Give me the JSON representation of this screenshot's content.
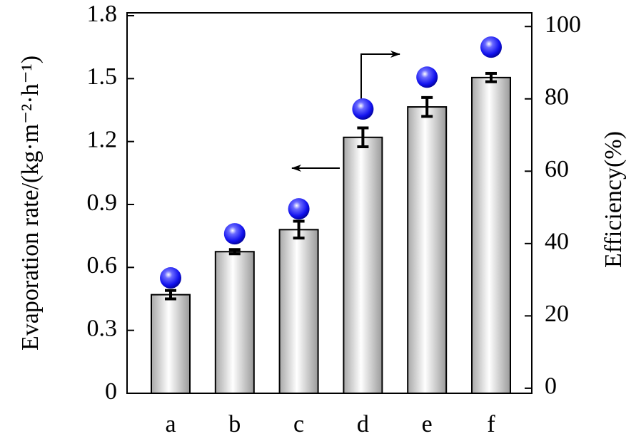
{
  "chart_data": {
    "type": "bar",
    "categories": [
      "a",
      "b",
      "c",
      "d",
      "e",
      "f"
    ],
    "ylabel": "Evaporation rate/(kg·m⁻²·h⁻¹)",
    "y2label": "Efficiency(%)",
    "series": [
      {
        "type": "bar",
        "color": "#d9d9d9",
        "values": [
          0.47,
          0.675,
          0.78,
          1.22,
          1.365,
          1.505
        ],
        "errors": [
          0.02,
          0.01,
          0.04,
          0.045,
          0.045,
          0.02
        ]
      },
      {
        "type": "scatter",
        "axis": "y2",
        "color": "#1a1aff",
        "values": [
          30.5,
          42.7,
          49.6,
          77.2,
          86,
          94.3
        ]
      }
    ],
    "ylim": [
      0,
      1.8
    ],
    "yticks": [
      0,
      0.3,
      0.6,
      0.9,
      1.2,
      1.5,
      1.8
    ],
    "y2lim": [
      -1.4,
      103
    ],
    "y2ticks": [
      0,
      20,
      40,
      60,
      80,
      100
    ]
  }
}
